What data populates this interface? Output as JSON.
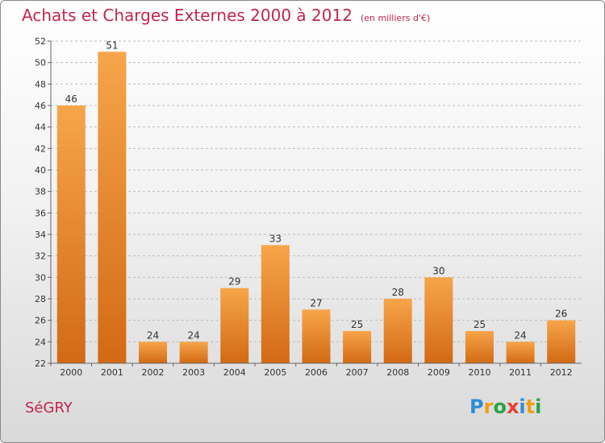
{
  "header": {
    "title": "Achats et Charges Externes 2000 à 2012",
    "subtitle": "(en milliers d'€)"
  },
  "footer": {
    "commune": "SéGRY",
    "logo": "Proxiti"
  },
  "colors": {
    "title": "#c0264f",
    "bar_top": "#f7a54a",
    "bar_bottom": "#d26a14"
  },
  "chart_data": {
    "type": "bar",
    "title": "Achats et Charges Externes 2000 à 2012",
    "subtitle": "(en milliers d'€)",
    "xlabel": "",
    "ylabel": "",
    "categories": [
      "2000",
      "2001",
      "2002",
      "2003",
      "2004",
      "2005",
      "2006",
      "2007",
      "2008",
      "2009",
      "2010",
      "2011",
      "2012"
    ],
    "values": [
      46,
      51,
      24,
      24,
      29,
      33,
      27,
      25,
      28,
      30,
      25,
      24,
      26
    ],
    "ylim": [
      22,
      52
    ],
    "yticks": [
      22,
      24,
      26,
      28,
      30,
      32,
      34,
      36,
      38,
      40,
      42,
      44,
      46,
      48,
      50,
      52
    ],
    "grid": "horizontal-dashed",
    "legend": "none"
  }
}
